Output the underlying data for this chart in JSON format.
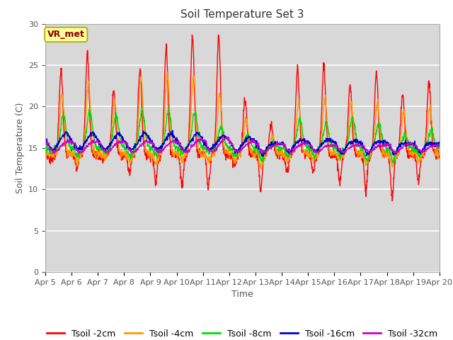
{
  "title": "Soil Temperature Set 3",
  "xlabel": "Time",
  "ylabel": "Soil Temperature (C)",
  "ylim": [
    0,
    30
  ],
  "yticks": [
    0,
    5,
    10,
    15,
    20,
    25,
    30
  ],
  "n_days": 15,
  "date_labels": [
    "Apr 5",
    "Apr 6",
    "Apr 7",
    "Apr 8",
    "Apr 9",
    "Apr 10",
    "Apr 11",
    "Apr 12",
    "Apr 13",
    "Apr 14",
    "Apr 15",
    "Apr 16",
    "Apr 17",
    "Apr 18",
    "Apr 19",
    "Apr 20"
  ],
  "colors": {
    "Tsoil -2cm": "#ff0000",
    "Tsoil -4cm": "#ff9900",
    "Tsoil -8cm": "#00dd00",
    "Tsoil -16cm": "#0000cc",
    "Tsoil -32cm": "#cc00cc"
  },
  "legend_label": "VR_met",
  "fig_bg_color": "#ffffff",
  "plot_bg_color": "#d8d8d8",
  "grid_color": "#ffffff",
  "annotation_bg": "#ffff99",
  "annotation_edge": "#aaaa00",
  "annotation_text_color": "#880000",
  "tick_label_color": "#555555",
  "title_fontsize": 11,
  "axis_label_fontsize": 9,
  "tick_fontsize": 8,
  "legend_fontsize": 9
}
